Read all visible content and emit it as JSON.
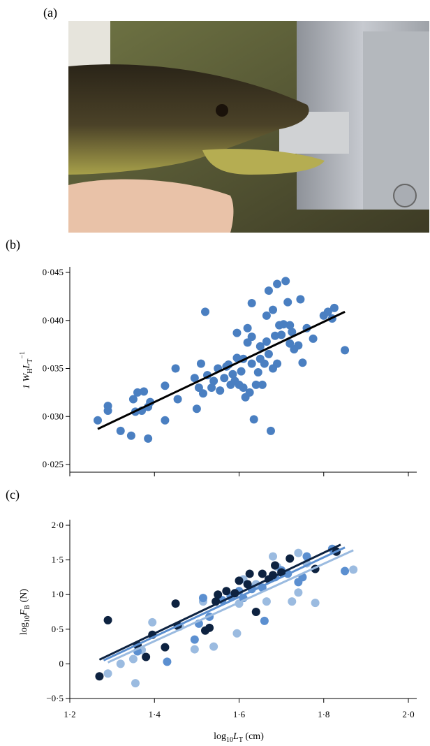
{
  "panels": {
    "a": "(a)",
    "b": "(b)",
    "c": "(c)"
  },
  "chart_data": [
    {
      "type": "scatter",
      "ylabel": [
        "1 W",
        "H",
        "L",
        "T",
        "−1"
      ],
      "color": "#4a7fc1",
      "xlim": [
        1.2,
        2.0
      ],
      "xticks": [
        1.2,
        1.4,
        1.6,
        1.8,
        2.0
      ],
      "ylim": [
        0.0242,
        0.045
      ],
      "yticks": [
        {
          "value": 0.025,
          "label": "0·025"
        },
        {
          "value": 0.03,
          "label": "0·030"
        },
        {
          "value": 0.035,
          "label": "0·035"
        },
        {
          "value": 0.04,
          "label": "0·040"
        },
        {
          "value": 0.045,
          "label": "0·045"
        }
      ],
      "series": [
        {
          "color": "#4a7fc1",
          "x": [
            1.266,
            1.29,
            1.29,
            1.32,
            1.345,
            1.35,
            1.355,
            1.36,
            1.37,
            1.375,
            1.385,
            1.385,
            1.39,
            1.425,
            1.425,
            1.45,
            1.455,
            1.495,
            1.5,
            1.505,
            1.51,
            1.515,
            1.52,
            1.525,
            1.535,
            1.54,
            1.55,
            1.555,
            1.565,
            1.57,
            1.575,
            1.58,
            1.585,
            1.59,
            1.595,
            1.595,
            1.6,
            1.605,
            1.61,
            1.61,
            1.615,
            1.62,
            1.62,
            1.625,
            1.63,
            1.63,
            1.63,
            1.635,
            1.64,
            1.645,
            1.65,
            1.65,
            1.655,
            1.66,
            1.665,
            1.665,
            1.67,
            1.67,
            1.675,
            1.68,
            1.68,
            1.685,
            1.69,
            1.69,
            1.695,
            1.7,
            1.705,
            1.71,
            1.715,
            1.72,
            1.72,
            1.725,
            1.73,
            1.74,
            1.745,
            1.75,
            1.76,
            1.775,
            1.8,
            1.81,
            1.82,
            1.825,
            1.85
          ],
          "values": [
            0.0296,
            0.0311,
            0.0306,
            0.0285,
            0.028,
            0.0318,
            0.0305,
            0.0325,
            0.0306,
            0.0326,
            0.031,
            0.0277,
            0.0315,
            0.0296,
            0.0332,
            0.035,
            0.0318,
            0.034,
            0.0308,
            0.033,
            0.0355,
            0.0324,
            0.0409,
            0.0343,
            0.033,
            0.0337,
            0.035,
            0.0327,
            0.034,
            0.0352,
            0.0354,
            0.0333,
            0.0344,
            0.0337,
            0.0361,
            0.0387,
            0.0333,
            0.0347,
            0.036,
            0.033,
            0.032,
            0.0377,
            0.0392,
            0.0325,
            0.0418,
            0.0383,
            0.0355,
            0.0297,
            0.0333,
            0.0346,
            0.036,
            0.0373,
            0.0333,
            0.0355,
            0.0405,
            0.0378,
            0.0431,
            0.0365,
            0.0285,
            0.0411,
            0.035,
            0.0384,
            0.0438,
            0.0355,
            0.0395,
            0.0385,
            0.0396,
            0.0441,
            0.0419,
            0.0376,
            0.0395,
            0.0388,
            0.037,
            0.0374,
            0.0422,
            0.0356,
            0.0392,
            0.0381,
            0.0405,
            0.0409,
            0.0402,
            0.0413,
            0.0369
          ],
          "fit": {
            "color": "#000000",
            "x": [
              1.266,
              1.85
            ],
            "values": [
              0.0287,
              0.0409
            ]
          }
        }
      ]
    },
    {
      "type": "scatter",
      "ylabel": [
        "log",
        "10",
        "F",
        "B",
        " (N)"
      ],
      "xlabel": [
        "log",
        "10",
        "L",
        "T",
        " (cm)"
      ],
      "xlim": [
        1.2,
        2.0
      ],
      "xticks": [
        {
          "value": 1.2,
          "label": "1·2"
        },
        {
          "value": 1.4,
          "label": "1·4"
        },
        {
          "value": 1.6,
          "label": "1·6"
        },
        {
          "value": 1.8,
          "label": "1·8"
        },
        {
          "value": 2.0,
          "label": "2·0"
        }
      ],
      "ylim": [
        -0.5,
        2.0
      ],
      "yticks": [
        {
          "value": -0.5,
          "label": "−0·5"
        },
        0,
        {
          "value": 0.5,
          "label": "0·5"
        },
        {
          "value": 1.0,
          "label": "1·0"
        },
        {
          "value": 1.5,
          "label": "1·5"
        },
        {
          "value": 2.0,
          "label": "2·0"
        }
      ],
      "series": [
        {
          "color": "#9bbbe0",
          "x": [
            1.29,
            1.32,
            1.35,
            1.355,
            1.37,
            1.395,
            1.46,
            1.495,
            1.515,
            1.54,
            1.595,
            1.6,
            1.61,
            1.64,
            1.665,
            1.68,
            1.69,
            1.725,
            1.74,
            1.74,
            1.76,
            1.78,
            1.83,
            1.87
          ],
          "values": [
            -0.14,
            0.0,
            0.07,
            -0.28,
            0.2,
            0.6,
            0.54,
            0.21,
            0.9,
            0.25,
            0.44,
            0.87,
            1.22,
            1.15,
            0.9,
            1.55,
            1.4,
            0.9,
            1.03,
            1.6,
            1.45,
            0.88,
            1.62,
            1.36
          ],
          "fit": {
            "color": "#9bbbe0",
            "x": [
              1.29,
              1.87
            ],
            "values": [
              0.02,
              1.64
            ]
          }
        },
        {
          "color": "#5b8fd0",
          "x": [
            1.36,
            1.43,
            1.495,
            1.505,
            1.515,
            1.53,
            1.56,
            1.58,
            1.6,
            1.61,
            1.63,
            1.655,
            1.66,
            1.685,
            1.7,
            1.715,
            1.74,
            1.75,
            1.76,
            1.82,
            1.85
          ],
          "values": [
            0.18,
            0.03,
            0.35,
            0.58,
            0.95,
            0.68,
            0.92,
            0.97,
            1.05,
            0.95,
            1.08,
            1.1,
            0.62,
            1.25,
            1.35,
            1.3,
            1.18,
            1.25,
            1.55,
            1.66,
            1.34
          ],
          "fit": {
            "color": "#5b8fd0",
            "x": [
              1.28,
              1.85
            ],
            "values": [
              0.05,
              1.68
            ]
          }
        },
        {
          "color": "#0d2240",
          "x": [
            1.27,
            1.29,
            1.36,
            1.38,
            1.395,
            1.425,
            1.45,
            1.455,
            1.52,
            1.53,
            1.545,
            1.55,
            1.57,
            1.59,
            1.6,
            1.62,
            1.625,
            1.64,
            1.655,
            1.67,
            1.68,
            1.685,
            1.7,
            1.72,
            1.78,
            1.83
          ],
          "values": [
            -0.18,
            0.63,
            0.27,
            0.1,
            0.42,
            0.24,
            0.87,
            0.55,
            0.48,
            0.52,
            0.9,
            1.0,
            1.05,
            1.02,
            1.2,
            1.15,
            1.3,
            0.75,
            1.3,
            1.22,
            1.28,
            1.42,
            1.32,
            1.52,
            1.37,
            1.62
          ],
          "fit": {
            "color": "#0d2240",
            "x": [
              1.27,
              1.84
            ],
            "values": [
              0.06,
              1.72
            ]
          }
        }
      ]
    }
  ]
}
